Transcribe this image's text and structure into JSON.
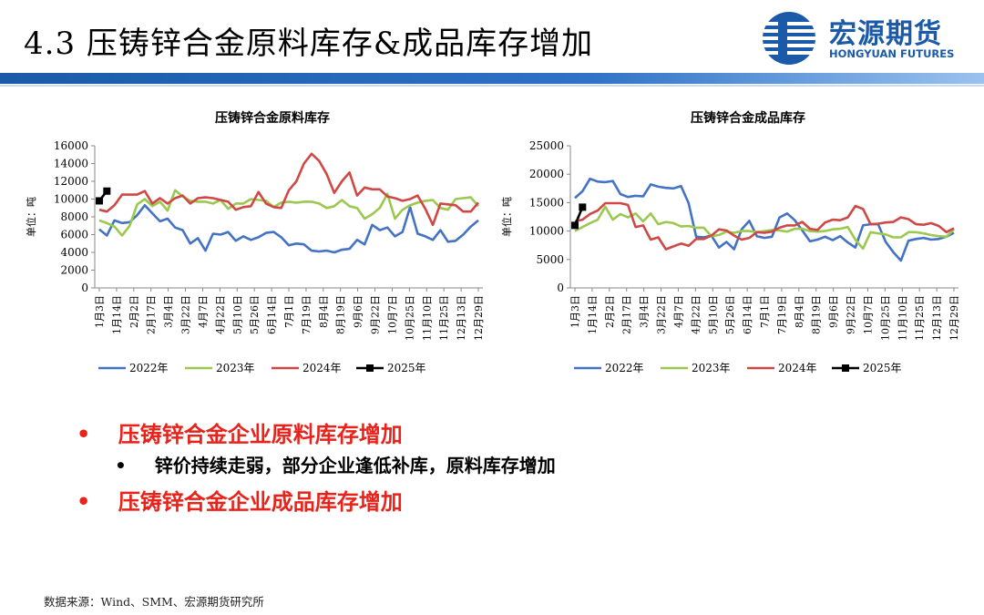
{
  "title": "4.3 压铸锌合金原料库存&成品库存增加",
  "logo": {
    "cn": "宏源期货",
    "en": "HONGYUAN FUTURES"
  },
  "colors": {
    "s2022": "#4472c4",
    "s2023": "#9bc84f",
    "s2024": "#d04845",
    "s2025": "#000000",
    "bullet_red": "#e8231b",
    "header_blue": "#1a5aa8"
  },
  "x_labels": [
    "1月3日",
    "1月14日",
    "2月2日",
    "2月17日",
    "3月4日",
    "3月22日",
    "4月7日",
    "4月22日",
    "5月10日",
    "5月26日",
    "6月14日",
    "7月1日",
    "7月19日",
    "8月4日",
    "8月19日",
    "9月6日",
    "9月22日",
    "10月7日",
    "10月25日",
    "11月10日",
    "11月25日",
    "12月13日",
    "12月29日"
  ],
  "chart_data": [
    {
      "type": "line",
      "title": "压铸锌合金原料库存",
      "ylabel": "单位：吨",
      "ylim": [
        0,
        16000
      ],
      "yticks": [
        "0",
        "2000",
        "4000",
        "6000",
        "8000",
        "10000",
        "12000",
        "14000",
        "16000"
      ],
      "points": 51,
      "series": [
        {
          "name": "2022年",
          "values": [
            6600,
            5900,
            7600,
            7300,
            7400,
            8200,
            9300,
            8400,
            7500,
            7800,
            6800,
            6500,
            5000,
            5600,
            4200,
            6100,
            6000,
            6300,
            5300,
            5800,
            5400,
            5700,
            6200,
            6300,
            5700,
            4800,
            5000,
            4900,
            4200,
            4100,
            4200,
            4000,
            4300,
            4400,
            5400,
            4900,
            7100,
            6500,
            6800,
            5800,
            6300,
            9100,
            6100,
            5800,
            5400,
            6500,
            5200,
            5300,
            6000,
            6900,
            7600
          ]
        },
        {
          "name": "2023年",
          "values": [
            7600,
            7300,
            6900,
            5900,
            7000,
            9400,
            10000,
            9200,
            9700,
            8700,
            11000,
            10300,
            9800,
            9700,
            9700,
            9500,
            9900,
            8900,
            9500,
            9500,
            10000,
            9900,
            9800,
            9100,
            9600,
            9700,
            9600,
            9700,
            9700,
            9500,
            9000,
            9200,
            9900,
            9200,
            9000,
            7800,
            8300,
            9000,
            10600,
            7800,
            8800,
            9300,
            9600,
            9800,
            9900,
            9000,
            8800,
            10000,
            10100,
            10200,
            9200
          ]
        },
        {
          "name": "2024年",
          "values": [
            8800,
            8600,
            9300,
            10500,
            10500,
            10500,
            10900,
            9500,
            10100,
            9500,
            10100,
            10400,
            9500,
            10100,
            10200,
            10100,
            9900,
            9700,
            8800,
            9100,
            9200,
            10800,
            9500,
            9100,
            9000,
            11000,
            12000,
            14000,
            15100,
            14300,
            12800,
            10700,
            12000,
            13000,
            10400,
            11300,
            11100,
            11100,
            10300,
            10100,
            9800,
            10000,
            10400,
            8900,
            7100,
            9500,
            9400,
            9300,
            8600,
            8600,
            9600
          ]
        },
        {
          "name": "2025年",
          "values": [
            9800,
            10900
          ]
        }
      ]
    },
    {
      "type": "line",
      "title": "压铸锌合金成品库存",
      "ylabel": "单位：吨",
      "ylim": [
        0,
        25000
      ],
      "yticks": [
        "0",
        "5000",
        "10000",
        "15000",
        "20000",
        "25000"
      ],
      "points": 51,
      "series": [
        {
          "name": "2022年",
          "values": [
            15800,
            17000,
            19200,
            18700,
            18600,
            18800,
            16500,
            16000,
            16200,
            16100,
            18200,
            17800,
            17600,
            17500,
            17900,
            14900,
            9000,
            8900,
            9200,
            7100,
            8100,
            6800,
            10300,
            11800,
            9100,
            8800,
            9000,
            12400,
            13100,
            11900,
            10100,
            8200,
            8500,
            9000,
            8400,
            9100,
            8000,
            7100,
            11000,
            11200,
            11200,
            8100,
            6300,
            4800,
            8300,
            8600,
            8800,
            8500,
            8600,
            9000,
            9700
          ]
        },
        {
          "name": "2023年",
          "values": [
            10000,
            10700,
            11400,
            12000,
            14300,
            12000,
            13000,
            12400,
            13100,
            11700,
            13100,
            11200,
            11600,
            11400,
            10800,
            10900,
            10600,
            10600,
            9100,
            9300,
            9900,
            9700,
            10000,
            10000,
            9800,
            10000,
            10200,
            10100,
            9900,
            10400,
            10400,
            10000,
            9900,
            10000,
            10300,
            10400,
            10700,
            8500,
            6900,
            9800,
            9600,
            9400,
            8900,
            8900,
            9800,
            9800,
            9600,
            9300,
            9100,
            9000,
            10300
          ]
        },
        {
          "name": "2024年",
          "values": [
            11700,
            12000,
            13000,
            13600,
            14900,
            14900,
            14900,
            14600,
            10700,
            11000,
            8500,
            8900,
            6800,
            7300,
            7800,
            7400,
            8600,
            8600,
            9200,
            10300,
            10100,
            9200,
            8500,
            8800,
            9800,
            9700,
            9900,
            10600,
            11000,
            11000,
            11600,
            10400,
            10200,
            11500,
            12000,
            11900,
            12400,
            14400,
            13900,
            11200,
            11300,
            11500,
            11600,
            12400,
            12100,
            11200,
            11100,
            11400,
            10900,
            9800,
            10500
          ]
        },
        {
          "name": "2025年",
          "values": [
            11000,
            14200
          ]
        }
      ]
    }
  ],
  "legend": [
    "2022年",
    "2023年",
    "2024年",
    "2025年"
  ],
  "bullets": {
    "b1": "压铸锌合金企业原料库存增加",
    "b1_sub": "锌价持续走弱，部分企业逢低补库，原料库存增加",
    "b2": "压铸锌合金企业成品库存增加",
    "marker": "•"
  },
  "source": "数据来源：Wind、SMM、宏源期货研究所"
}
